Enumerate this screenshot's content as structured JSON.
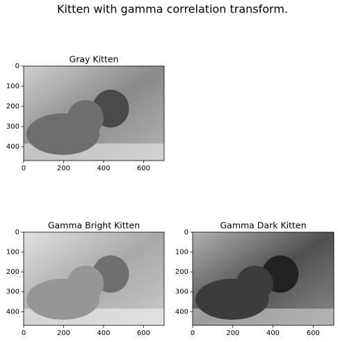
{
  "suptitle": "Kitten with gamma correlation transform.",
  "chart_data": [
    {
      "type": "image",
      "title": "Gray Kitten",
      "tone": "normal",
      "xlim": [
        0,
        703
      ],
      "ylim": [
        469,
        0
      ],
      "xticks": [
        0,
        200,
        400,
        600
      ],
      "yticks": [
        0,
        100,
        200,
        300,
        400
      ]
    },
    {
      "type": "image",
      "title": "Gamma Bright Kitten",
      "tone": "bright",
      "xlim": [
        0,
        703
      ],
      "ylim": [
        469,
        0
      ],
      "xticks": [
        0,
        200,
        400,
        600
      ],
      "yticks": [
        0,
        100,
        200,
        300,
        400
      ]
    },
    {
      "type": "image",
      "title": "Gamma Dark Kitten",
      "tone": "dark",
      "xlim": [
        0,
        703
      ],
      "ylim": [
        469,
        0
      ],
      "xticks": [
        0,
        200,
        400,
        600
      ],
      "yticks": [
        0,
        100,
        200,
        300,
        400
      ]
    }
  ]
}
